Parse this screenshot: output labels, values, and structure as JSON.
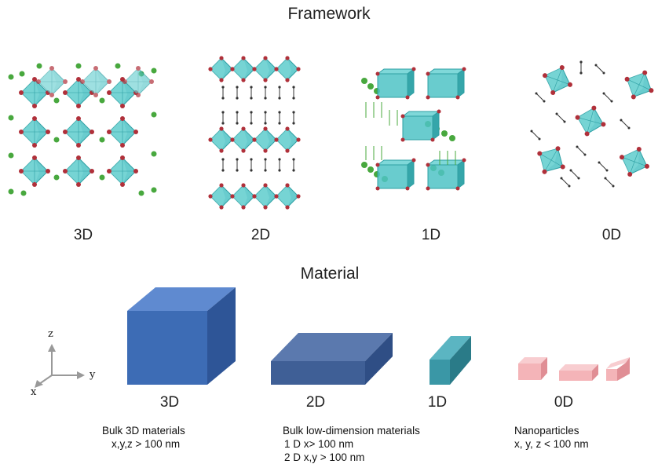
{
  "framework": {
    "title": "Framework",
    "labels": [
      "3D",
      "2D",
      "1D",
      "0D"
    ]
  },
  "material": {
    "title": "Material",
    "labels": [
      "3D",
      "2D",
      "1D",
      "0D"
    ],
    "axes": {
      "z": "z",
      "y": "y",
      "x": "x"
    },
    "captions": {
      "bulk3d_title": "Bulk 3D materials",
      "bulk3d_dims": "x,y,z > 100 nm",
      "lowdim_title": "Bulk low-dimension materials",
      "lowdim_1d": "1 D x> 100 nm",
      "lowdim_2d": "2 D x,y > 100 nm",
      "nano_title": "Nanoparticles",
      "nano_dims": "x, y, z < 100 nm"
    }
  },
  "colors": {
    "octahedron": "#4fc3c5",
    "octahedron_dark": "#2e9fa3",
    "atom_red": "#b0303a",
    "atom_green": "#48a83e",
    "cube3d": "#3d6cb5",
    "slab2d": "#3f5f96",
    "rod1d": "#3a97a6",
    "nano0d": "#f4b4b8"
  }
}
